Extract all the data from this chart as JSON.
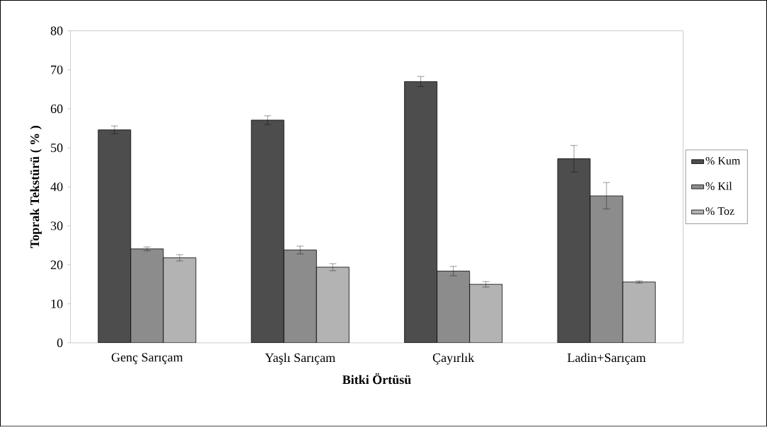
{
  "chart_data": {
    "type": "bar",
    "xlabel": "Bitki Örtüsü",
    "ylabel": "Toprak Tekstürü ( % )",
    "categories": [
      "Genç Sarıçam",
      "Yaşlı Sarıçam",
      "Çayırlık",
      "Ladin+Sarıçam"
    ],
    "series": [
      {
        "name": "% Kum",
        "color": "#4d4d4d",
        "values": [
          54.6,
          57.1,
          67.0,
          47.2
        ],
        "errors": [
          1.0,
          1.1,
          1.3,
          3.4
        ]
      },
      {
        "name": "% Kil",
        "color": "#8c8c8c",
        "values": [
          24.1,
          23.8,
          18.4,
          37.7
        ],
        "errors": [
          0.5,
          1.0,
          1.2,
          3.4
        ]
      },
      {
        "name": "% Toz",
        "color": "#b3b3b3",
        "values": [
          21.8,
          19.4,
          15.0,
          15.6
        ],
        "errors": [
          0.8,
          0.9,
          0.7,
          0.3
        ]
      }
    ],
    "ylim": [
      0,
      80
    ],
    "yticks": [
      0,
      10,
      20,
      30,
      40,
      50,
      60,
      70,
      80
    ],
    "legend": "right",
    "grid": false
  }
}
